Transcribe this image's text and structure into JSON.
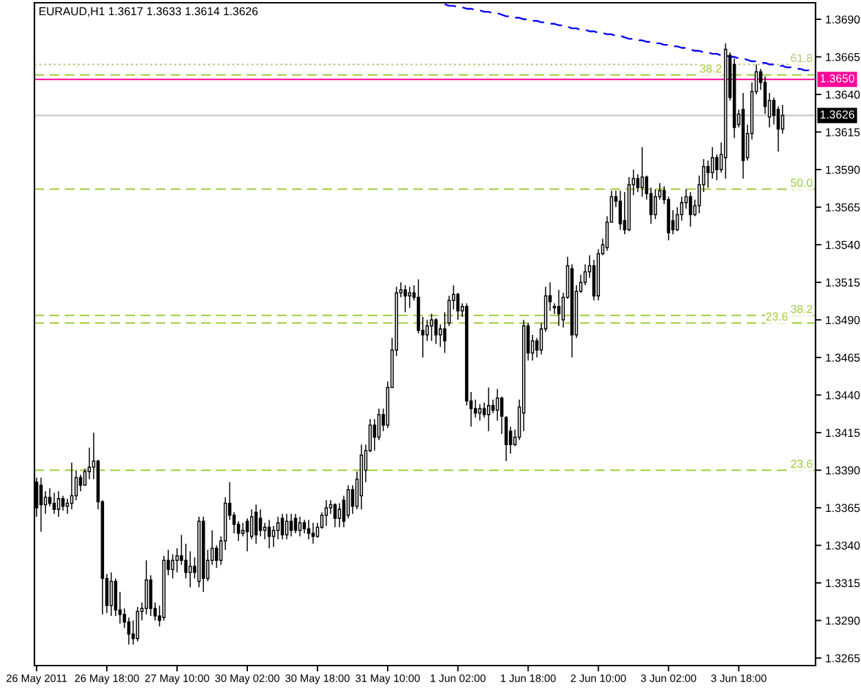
{
  "chart_data": {
    "type": "candlestick",
    "title": "EURAUD,H1 1.3617 1.3633 1.3614 1.3626",
    "categories": [
      "26 May 2011",
      null,
      null,
      null,
      null,
      null,
      null,
      null,
      null,
      null,
      null,
      null,
      null,
      null,
      null,
      null,
      "26 May 18:00",
      null,
      null,
      null,
      null,
      null,
      null,
      null,
      null,
      null,
      null,
      null,
      null,
      null,
      null,
      null,
      "27 May 10:00",
      null,
      null,
      null,
      null,
      null,
      null,
      null,
      null,
      null,
      null,
      null,
      null,
      null,
      null,
      null,
      "30 May 02:00",
      null,
      null,
      null,
      null,
      null,
      null,
      null,
      null,
      null,
      null,
      null,
      null,
      null,
      null,
      null,
      "30 May 18:00",
      null,
      null,
      null,
      null,
      null,
      null,
      null,
      null,
      null,
      null,
      null,
      null,
      null,
      null,
      null,
      "31 May 10:00",
      null,
      null,
      null,
      null,
      null,
      null,
      null,
      null,
      null,
      null,
      null,
      null,
      null,
      null,
      null,
      "1 Jun 02:00",
      null,
      null,
      null,
      null,
      null,
      null,
      null,
      null,
      null,
      null,
      null,
      null,
      null,
      null,
      null,
      "1 Jun 18:00",
      null,
      null,
      null,
      null,
      null,
      null,
      null,
      null,
      null,
      null,
      null,
      null,
      null,
      null,
      null,
      "2 Jun 10:00",
      null,
      null,
      null,
      null,
      null,
      null,
      null,
      null,
      null,
      null,
      null,
      null,
      null,
      null,
      null,
      "3 Jun 02:00",
      null,
      null,
      null,
      null,
      null,
      null,
      null,
      null,
      null,
      null,
      null,
      null,
      null,
      null,
      null,
      "3 Jun 18:00",
      null,
      null,
      null,
      null,
      null,
      null,
      null,
      null,
      null,
      null,
      null,
      null,
      null,
      null,
      null,
      null,
      null
    ],
    "ylim": [
      1.326,
      1.3701
    ],
    "yticks": [
      1.3265,
      {
        "value": 1.329,
        "label": "1.3290"
      },
      1.3315,
      {
        "value": 1.334,
        "label": "1.3340"
      },
      1.3365,
      {
        "value": 1.339,
        "label": "1.3390"
      },
      1.3415,
      {
        "value": 1.344,
        "label": "1.3440"
      },
      1.3465,
      {
        "value": 1.349,
        "label": "1.3490"
      },
      1.3515,
      {
        "value": 1.354,
        "label": "1.3540"
      },
      1.3565,
      {
        "value": 1.359,
        "label": "1.3590"
      },
      1.3615,
      {
        "value": 1.364,
        "label": "1.3640"
      },
      1.3665,
      {
        "value": 1.369,
        "label": "1.3690"
      }
    ],
    "ref_lines": [
      {
        "axis": "y",
        "value": 1.366,
        "color": "#b4c878",
        "line_style": "dotted"
      },
      {
        "axis": "y",
        "value": 1.3653,
        "color": "#9acd32",
        "line_style": "dashed"
      },
      {
        "axis": "y",
        "value": 1.365,
        "label": "1.3650",
        "color": "#ff0099",
        "line_style": "solid"
      },
      {
        "axis": "y",
        "value": 1.3626,
        "label": "1.3626",
        "color": "#c0c0c0",
        "line_style": "solid"
      },
      {
        "axis": "y",
        "value": 1.3577,
        "color": "#9acd32",
        "line_style": "dashed"
      },
      {
        "axis": "y",
        "value": 1.3493,
        "color": "#9acd32",
        "line_style": "dashed"
      },
      {
        "axis": "y",
        "value": 1.3488,
        "color": "#9acd32",
        "line_style": "dashed"
      },
      {
        "axis": "y",
        "value": 1.339,
        "color": "#9acd32",
        "line_style": "dashed"
      }
    ],
    "annotations": [
      {
        "text": "61.8",
        "y": 1.366
      },
      {
        "text": "38.2",
        "y": 1.3653
      },
      {
        "text": "50.0",
        "y": 1.3577
      },
      {
        "text": "38.2",
        "y": 1.3493
      },
      {
        "text": "23.6",
        "y": 1.3488
      },
      {
        "text": "23.6",
        "y": 1.339
      }
    ],
    "series": [
      {
        "ohlc": [
          [
            1.3382,
            1.3385,
            1.3359,
            1.3365
          ],
          [
            1.338,
            1.3385,
            1.3349,
            1.3367
          ],
          [
            1.3367,
            1.3376,
            1.3361,
            1.3372
          ],
          [
            1.3372,
            1.3378,
            1.3366,
            1.3368
          ],
          [
            1.3368,
            1.3375,
            1.3361,
            1.3364
          ],
          [
            1.3364,
            1.3376,
            1.3359,
            1.3371
          ],
          [
            1.3371,
            1.3373,
            1.3363,
            1.3366
          ],
          [
            1.3366,
            1.3371,
            1.3361,
            1.3368
          ],
          [
            1.3368,
            1.3395,
            1.3364,
            1.3373
          ],
          [
            1.3373,
            1.339,
            1.337,
            1.3385
          ],
          [
            1.3385,
            1.3387,
            1.3376,
            1.338
          ],
          [
            1.338,
            1.3391,
            1.338,
            1.3389
          ],
          [
            1.3389,
            1.3405,
            1.3384,
            1.3392
          ],
          [
            1.3392,
            1.3415,
            1.3384,
            1.3396
          ],
          [
            1.3396,
            1.3397,
            1.3364,
            1.3369
          ],
          [
            1.3369,
            1.337,
            1.3294,
            1.3318
          ],
          [
            1.3318,
            1.3321,
            1.3295,
            1.33
          ],
          [
            1.33,
            1.3322,
            1.3293,
            1.3316
          ],
          [
            1.3316,
            1.3318,
            1.3293,
            1.3297
          ],
          [
            1.3297,
            1.3309,
            1.3288,
            1.3294
          ],
          [
            1.3294,
            1.3298,
            1.3285,
            1.3289
          ],
          [
            1.3289,
            1.3292,
            1.3274,
            1.3281
          ],
          [
            1.3281,
            1.329,
            1.3274,
            1.3278
          ],
          [
            1.3278,
            1.3299,
            1.3276,
            1.3296
          ],
          [
            1.3296,
            1.3302,
            1.329,
            1.3298
          ],
          [
            1.3298,
            1.333,
            1.3294,
            1.3317
          ],
          [
            1.3317,
            1.332,
            1.3293,
            1.3298
          ],
          [
            1.3298,
            1.3302,
            1.329,
            1.3293
          ],
          [
            1.3293,
            1.33,
            1.3286,
            1.329
          ],
          [
            1.3292,
            1.3333,
            1.329,
            1.333
          ],
          [
            1.333,
            1.3337,
            1.332,
            1.3324
          ],
          [
            1.3324,
            1.3334,
            1.3318,
            1.333
          ],
          [
            1.333,
            1.3338,
            1.3322,
            1.3333
          ],
          [
            1.3333,
            1.3347,
            1.3327,
            1.333
          ],
          [
            1.333,
            1.3341,
            1.3318,
            1.3322
          ],
          [
            1.3322,
            1.3336,
            1.3312,
            1.3326
          ],
          [
            1.3326,
            1.3332,
            1.3318,
            1.3322
          ],
          [
            1.3316,
            1.3359,
            1.3312,
            1.3356
          ],
          [
            1.3356,
            1.3359,
            1.3309,
            1.3318
          ],
          [
            1.3318,
            1.3337,
            1.3316,
            1.333
          ],
          [
            1.333,
            1.335,
            1.3327,
            1.3338
          ],
          [
            1.3338,
            1.334,
            1.3325,
            1.333
          ],
          [
            1.333,
            1.3346,
            1.3327,
            1.3343
          ],
          [
            1.3343,
            1.3372,
            1.3337,
            1.3368
          ],
          [
            1.3368,
            1.3382,
            1.3357,
            1.336
          ],
          [
            1.336,
            1.3362,
            1.3348,
            1.3354
          ],
          [
            1.3354,
            1.3356,
            1.3343,
            1.3348
          ],
          [
            1.3348,
            1.3355,
            1.3346,
            1.335
          ],
          [
            1.3356,
            1.3358,
            1.3336,
            1.3349
          ],
          [
            1.3346,
            1.3364,
            1.3344,
            1.3359
          ],
          [
            1.3362,
            1.3367,
            1.3341,
            1.3347
          ],
          [
            1.3358,
            1.3364,
            1.3346,
            1.335
          ],
          [
            1.335,
            1.3355,
            1.3344,
            1.3352
          ],
          [
            1.3352,
            1.3357,
            1.3338,
            1.3346
          ],
          [
            1.3346,
            1.3353,
            1.3339,
            1.335
          ],
          [
            1.335,
            1.3359,
            1.3344,
            1.3355
          ],
          [
            1.3358,
            1.3361,
            1.3344,
            1.3347
          ],
          [
            1.3347,
            1.3361,
            1.3344,
            1.3356
          ],
          [
            1.3356,
            1.3361,
            1.3346,
            1.335
          ],
          [
            1.3358,
            1.3361,
            1.3348,
            1.335
          ],
          [
            1.335,
            1.3359,
            1.3346,
            1.3355
          ],
          [
            1.3355,
            1.3357,
            1.3348,
            1.3351
          ],
          [
            1.3351,
            1.3357,
            1.3344,
            1.3348
          ],
          [
            1.3348,
            1.3355,
            1.3341,
            1.3346
          ],
          [
            1.3346,
            1.3355,
            1.3345,
            1.3352
          ],
          [
            1.3352,
            1.3362,
            1.3351,
            1.336
          ],
          [
            1.336,
            1.337,
            1.3353,
            1.3365
          ],
          [
            1.3365,
            1.337,
            1.3361,
            1.3367
          ],
          [
            1.3367,
            1.3368,
            1.3352,
            1.3358
          ],
          [
            1.3358,
            1.3368,
            1.3352,
            1.3364
          ],
          [
            1.337,
            1.3373,
            1.3352,
            1.3356
          ],
          [
            1.336,
            1.338,
            1.3358,
            1.3377
          ],
          [
            1.3377,
            1.338,
            1.3361,
            1.3366
          ],
          [
            1.3366,
            1.3389,
            1.3364,
            1.3384
          ],
          [
            1.3373,
            1.3407,
            1.3364,
            1.34
          ],
          [
            1.339,
            1.3407,
            1.3382,
            1.3403
          ],
          [
            1.3403,
            1.3424,
            1.3402,
            1.342
          ],
          [
            1.342,
            1.3424,
            1.3403,
            1.3412
          ],
          [
            1.3412,
            1.3431,
            1.341,
            1.3427
          ],
          [
            1.3427,
            1.3431,
            1.3416,
            1.342
          ],
          [
            1.342,
            1.3449,
            1.3418,
            1.3445
          ],
          [
            1.3445,
            1.3478,
            1.3445,
            1.347
          ],
          [
            1.347,
            1.3512,
            1.3466,
            1.3508
          ],
          [
            1.3508,
            1.3515,
            1.3505,
            1.351
          ],
          [
            1.351,
            1.3513,
            1.3495,
            1.3506
          ],
          [
            1.3506,
            1.3512,
            1.3498,
            1.3508
          ],
          [
            1.3508,
            1.3513,
            1.3503,
            1.3505
          ],
          [
            1.3505,
            1.3517,
            1.3481,
            1.3483
          ],
          [
            1.3483,
            1.3492,
            1.3465,
            1.348
          ],
          [
            1.348,
            1.349,
            1.3476,
            1.3486
          ],
          [
            1.3486,
            1.3494,
            1.3476,
            1.349
          ],
          [
            1.349,
            1.3491,
            1.3474,
            1.348
          ],
          [
            1.348,
            1.3487,
            1.3472,
            1.3484
          ],
          [
            1.3484,
            1.3495,
            1.3468,
            1.3476
          ],
          [
            1.3488,
            1.3506,
            1.3486,
            1.3503
          ],
          [
            1.3503,
            1.3513,
            1.3497,
            1.3507
          ],
          [
            1.3507,
            1.3508,
            1.349,
            1.3496
          ],
          [
            1.3496,
            1.3501,
            1.3492,
            1.3499
          ],
          [
            1.3499,
            1.3501,
            1.3433,
            1.3436
          ],
          [
            1.3436,
            1.3442,
            1.3419,
            1.3431
          ],
          [
            1.3431,
            1.3437,
            1.3425,
            1.3428
          ],
          [
            1.3428,
            1.3434,
            1.3423,
            1.3431
          ],
          [
            1.3431,
            1.3435,
            1.3425,
            1.3427
          ],
          [
            1.3427,
            1.3445,
            1.3416,
            1.3433
          ],
          [
            1.3433,
            1.3437,
            1.3428,
            1.343
          ],
          [
            1.343,
            1.3444,
            1.3423,
            1.3438
          ],
          [
            1.3438,
            1.3439,
            1.3414,
            1.3426
          ],
          [
            1.3425,
            1.3426,
            1.3396,
            1.3407
          ],
          [
            1.3416,
            1.3419,
            1.3401,
            1.3407
          ],
          [
            1.3407,
            1.3417,
            1.3406,
            1.3412
          ],
          [
            1.3412,
            1.3437,
            1.341,
            1.3432
          ],
          [
            1.3428,
            1.349,
            1.3416,
            1.3486
          ],
          [
            1.3486,
            1.3488,
            1.3463,
            1.3468
          ],
          [
            1.3468,
            1.348,
            1.3463,
            1.3476
          ],
          [
            1.3476,
            1.3478,
            1.3465,
            1.347
          ],
          [
            1.347,
            1.3488,
            1.3467,
            1.3484
          ],
          [
            1.3484,
            1.3512,
            1.3482,
            1.3506
          ],
          [
            1.3506,
            1.3515,
            1.3496,
            1.3502
          ],
          [
            1.3498,
            1.3501,
            1.3494,
            1.3499
          ],
          [
            1.3499,
            1.351,
            1.3486,
            1.3494
          ],
          [
            1.349,
            1.3508,
            1.3485,
            1.3505
          ],
          [
            1.3505,
            1.3532,
            1.3504,
            1.3526
          ],
          [
            1.3524,
            1.3527,
            1.3465,
            1.348
          ],
          [
            1.348,
            1.3513,
            1.3478,
            1.3509
          ],
          [
            1.3509,
            1.352,
            1.3508,
            1.3515
          ],
          [
            1.3515,
            1.3527,
            1.3513,
            1.3522
          ],
          [
            1.3522,
            1.3533,
            1.3518,
            1.3526
          ],
          [
            1.3526,
            1.353,
            1.3503,
            1.3506
          ],
          [
            1.3506,
            1.3537,
            1.3503,
            1.3534
          ],
          [
            1.3534,
            1.3544,
            1.3533,
            1.354
          ],
          [
            1.3538,
            1.3559,
            1.3536,
            1.3555
          ],
          [
            1.3555,
            1.3576,
            1.3555,
            1.3572
          ],
          [
            1.3572,
            1.3576,
            1.3565,
            1.3569
          ],
          [
            1.3569,
            1.3576,
            1.355,
            1.3554
          ],
          [
            1.3556,
            1.3575,
            1.3547,
            1.355
          ],
          [
            1.355,
            1.3585,
            1.3549,
            1.358
          ],
          [
            1.358,
            1.359,
            1.3573,
            1.3584
          ],
          [
            1.3584,
            1.3587,
            1.3575,
            1.3578
          ],
          [
            1.3578,
            1.3605,
            1.3572,
            1.3585
          ],
          [
            1.3585,
            1.3586,
            1.357,
            1.3574
          ],
          [
            1.3574,
            1.3578,
            1.3554,
            1.356
          ],
          [
            1.356,
            1.3577,
            1.3557,
            1.3572
          ],
          [
            1.3572,
            1.3581,
            1.357,
            1.3576
          ],
          [
            1.3576,
            1.3579,
            1.3567,
            1.357
          ],
          [
            1.357,
            1.3572,
            1.3543,
            1.3548
          ],
          [
            1.3556,
            1.3563,
            1.3547,
            1.355
          ],
          [
            1.355,
            1.3565,
            1.3549,
            1.356
          ],
          [
            1.356,
            1.3572,
            1.3556,
            1.3568
          ],
          [
            1.3568,
            1.3577,
            1.3564,
            1.3572
          ],
          [
            1.3572,
            1.3575,
            1.3552,
            1.356
          ],
          [
            1.356,
            1.357,
            1.3559,
            1.3566
          ],
          [
            1.3566,
            1.3586,
            1.3561,
            1.358
          ],
          [
            1.358,
            1.3597,
            1.3575,
            1.3592
          ],
          [
            1.3592,
            1.3596,
            1.3578,
            1.3588
          ],
          [
            1.3588,
            1.3605,
            1.3584,
            1.3598
          ],
          [
            1.3598,
            1.36,
            1.3583,
            1.359
          ],
          [
            1.359,
            1.3608,
            1.3588,
            1.36
          ],
          [
            1.3598,
            1.3674,
            1.3584,
            1.367
          ],
          [
            1.3666,
            1.3668,
            1.3636,
            1.3638
          ],
          [
            1.366,
            1.3664,
            1.3611,
            1.3618
          ],
          [
            1.362,
            1.363,
            1.3618,
            1.3627
          ],
          [
            1.363,
            1.3641,
            1.3584,
            1.3596
          ],
          [
            1.3598,
            1.362,
            1.3596,
            1.3614
          ],
          [
            1.3614,
            1.3648,
            1.361,
            1.3642
          ],
          [
            1.3642,
            1.366,
            1.364,
            1.3655
          ],
          [
            1.3655,
            1.3657,
            1.3643,
            1.3648
          ],
          [
            1.3648,
            1.3652,
            1.3627,
            1.3632
          ],
          [
            1.3625,
            1.3641,
            1.3618,
            1.3636
          ],
          [
            1.3636,
            1.3638,
            1.362,
            1.3626
          ],
          [
            1.363,
            1.3632,
            1.3602,
            1.3617
          ],
          [
            1.3617,
            1.3633,
            1.3614,
            1.3626
          ],
          null,
          null,
          null,
          null,
          null,
          null,
          null
        ]
      },
      {
        "type": "line",
        "color": "#0000ff",
        "line_style": "dashed",
        "values": [
          null,
          null,
          null,
          null,
          null,
          null,
          null,
          null,
          null,
          null,
          null,
          null,
          null,
          null,
          null,
          null,
          null,
          null,
          null,
          null,
          null,
          null,
          null,
          null,
          null,
          null,
          null,
          null,
          null,
          null,
          null,
          null,
          null,
          null,
          null,
          null,
          null,
          null,
          null,
          null,
          null,
          null,
          null,
          null,
          null,
          null,
          null,
          null,
          null,
          null,
          null,
          null,
          null,
          null,
          null,
          null,
          null,
          null,
          null,
          null,
          null,
          null,
          null,
          null,
          null,
          null,
          null,
          null,
          null,
          null,
          null,
          null,
          null,
          null,
          null,
          null,
          null,
          null,
          null,
          null,
          null,
          null,
          null,
          null,
          null,
          null,
          null,
          null,
          null,
          null,
          null,
          null,
          null,
          1.37,
          1.3699,
          1.3699,
          1.3698,
          1.3698,
          1.3697,
          1.3697,
          1.3696,
          1.3696,
          1.3695,
          1.3695,
          1.3694,
          1.3694,
          1.3693,
          1.3692,
          1.3692,
          1.3691,
          1.3691,
          1.369,
          1.369,
          1.3689,
          1.3689,
          1.3688,
          1.3688,
          1.3687,
          1.3687,
          1.3686,
          1.3686,
          1.3685,
          1.3684,
          1.3684,
          1.3683,
          1.3683,
          1.3682,
          1.3682,
          1.3681,
          1.3681,
          1.368,
          1.368,
          1.3679,
          1.3679,
          1.3678,
          1.3677,
          1.3677,
          1.3676,
          1.3676,
          1.3675,
          1.3675,
          1.3674,
          1.3674,
          1.3673,
          1.3673,
          1.3672,
          1.3672,
          1.3671,
          1.3671,
          1.367,
          1.3669,
          1.3669,
          1.3668,
          1.3668,
          1.3667,
          1.3667,
          1.3666,
          1.3666,
          1.3665,
          1.3665,
          1.3664,
          1.3664,
          1.3663,
          1.3662,
          1.3662,
          1.3661,
          1.3661,
          1.366,
          1.366,
          1.3659,
          1.3659,
          1.3658,
          1.3658,
          1.3657,
          1.3657,
          1.3656,
          1.3656,
          1.3655
        ]
      }
    ]
  }
}
